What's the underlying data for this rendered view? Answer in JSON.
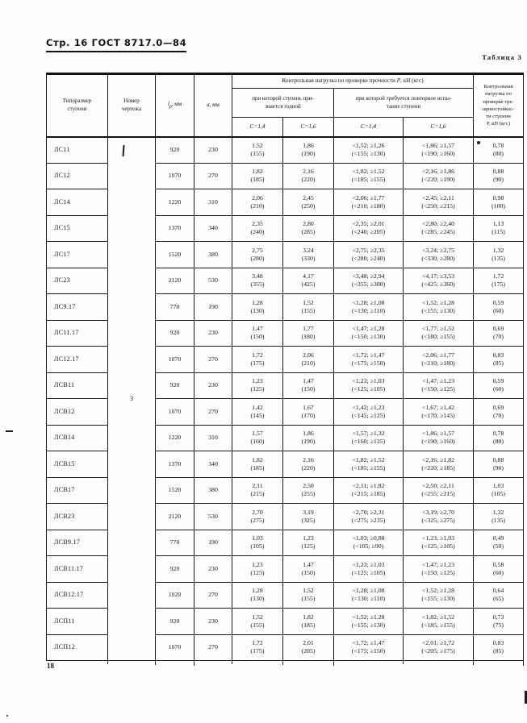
{
  "page_header": {
    "title": "Стр. 16 ГОСТ 8717.0—84"
  },
  "table_caption": "Таблица 3",
  "page_number": "18",
  "table": {
    "headers": {
      "type": "Типоразмер\nступени",
      "drawing": "Номер\nчертежа",
      "lp": {
        "base": "l",
        "sub": "р",
        "unit": ", мм"
      },
      "a": {
        "base": "а",
        "unit": ", мм"
      },
      "strength_group": {
        "prefix": "Контрольная нагрузка по проверке прочности ",
        "sym": "Р",
        "suffix": ", кН (кгс)"
      },
      "pass": "при которой ступень при-\nзнается годной",
      "retest": "при которой требуется повторное испы-\nтание ступени",
      "c_labels": [
        "С=1,4",
        "С=1,6",
        "С=1,4",
        "С=1,6"
      ],
      "crack": "Контрольная\nнагрузка по\nпроверке тре-\nщиностойкос-\nти ступени\nР, кН (кгс)"
    },
    "drawing_number": "3",
    "rows": [
      {
        "type": "ЛС11",
        "lp": "920",
        "a": "230",
        "c14_pass": "1,52\n(155)",
        "c16_pass": "1,86\n(190)",
        "c14_retest": "<1,52;  ≥1,26\n(<155;  ≥130)",
        "c16_retest": "<1,86;  ≥1,57\n(<190;  ≥160)",
        "crack": "0,78\n(80)"
      },
      {
        "type": "ЛС12",
        "lp": "1070",
        "a": "270",
        "c14_pass": "1,82\n(185)",
        "c16_pass": "2,16\n(220)",
        "c14_retest": "<1,82;  ≥1,52\n(<185;  ≥155)",
        "c16_retest": "<2,16;  ≥1,86\n(<220;  ≥190)",
        "crack": "0,88\n(90)"
      },
      {
        "type": "ЛС14",
        "lp": "1220",
        "a": "310",
        "c14_pass": "2,06\n(210)",
        "c16_pass": "2,45\n(250)",
        "c14_retest": "<2,06;  ≥1,77\n(<210;  ≥180)",
        "c16_retest": "<2,45;  ≥2,11\n(<250;  ≥215)",
        "crack": "0,98\n(100)"
      },
      {
        "type": "ЛС15",
        "lp": "1370",
        "a": "340",
        "c14_pass": "2,35\n(240)",
        "c16_pass": "2,80\n(285)",
        "c14_retest": "<2,35;  ≥2,01\n(<240;  ≥205)",
        "c16_retest": "<2,80;  ≥2,40\n(<285;  ≥245)",
        "crack": "1,13\n(115)"
      },
      {
        "type": "ЛС17",
        "lp": "1520",
        "a": "380",
        "c14_pass": "2,75\n(280)",
        "c16_pass": "3,24\n(330)",
        "c14_retest": "<2,75;  ≥2,35\n(<280;  ≥240)",
        "c16_retest": "<3,24;  ≥2,75\n(<330;  ≥280)",
        "crack": "1,32\n(135)"
      },
      {
        "type": "ЛС23",
        "lp": "2120",
        "a": "530",
        "c14_pass": "3,48\n(355)",
        "c16_pass": "4,17\n(425)",
        "c14_retest": "<3,48;  ≥2,94\n(<355;  ≥300)",
        "c16_retest": "<4,17;  ≥3,53\n(<425;  ≥360)",
        "crack": "1,72\n(175)"
      },
      {
        "type": "ЛС9.17",
        "lp": "770",
        "a": "190",
        "c14_pass": "1,28\n(130)",
        "c16_pass": "1,52\n(155)",
        "c14_retest": "<1,28;  ≥1,08\n(<130;  ≥110)",
        "c16_retest": "<1,52;  ≥1,28\n(<155;  ≥130)",
        "crack": "0,59\n(60)"
      },
      {
        "type": "ЛС11.17",
        "lp": "920",
        "a": "230",
        "c14_pass": "1,47\n(150)",
        "c16_pass": "1,77\n(180)",
        "c14_retest": "<1,47;  ≥1,28\n(<150;  ≥130)",
        "c16_retest": "<1,77;  ≥1,52\n(<180;  ≥155)",
        "crack": "0,69\n(70)"
      },
      {
        "type": "ЛС12.17",
        "lp": "1070",
        "a": "270",
        "c14_pass": "1,72\n(175)",
        "c16_pass": "2,06\n(210)",
        "c14_retest": "<1,72;  ≥1,47\n(<175;  ≥150)",
        "c16_retest": "<2,06;  ≥1,77\n(<210;  ≥180)",
        "crack": "0,83\n(85)"
      },
      {
        "type": "ЛСВ11",
        "lp": "920",
        "a": "230",
        "c14_pass": "1,23\n(125)",
        "c16_pass": "1,47\n(150)",
        "c14_retest": "<1,23;  ≥1,03\n(<125;  ≥105)",
        "c16_retest": "<1,47;  ≥1,23\n(<150;  ≥125)",
        "crack": "0,59\n(60)"
      },
      {
        "type": "ЛСВ12",
        "lp": "1070",
        "a": "270",
        "c14_pass": "1,42\n(145)",
        "c16_pass": "1,67\n(170)",
        "c14_retest": "<1,42;  ≥1,23\n(<145;  ≥125)",
        "c16_retest": "<1,67;  ≥1,42\n(<170;  ≥145)",
        "crack": "0,69\n(70)"
      },
      {
        "type": "ЛСВ14",
        "lp": "1220",
        "a": "310",
        "c14_pass": "1,57\n(160)",
        "c16_pass": "1,86\n(190)",
        "c14_retest": "<1,57;  ≥1,32\n(<160;  ≥135)",
        "c16_retest": "<1,86;  ≥1,57\n(<190;  ≥160)",
        "crack": "0,78\n(80)"
      },
      {
        "type": "ЛСВ15",
        "lp": "1370",
        "a": "340",
        "c14_pass": "1,82\n(185)",
        "c16_pass": "2,16\n(220)",
        "c14_retest": "<1,82;  ≥1,52\n(<185;  ≥155)",
        "c16_retest": "<2,16;  ≥1,82\n(<220;  ≥185)",
        "crack": "0,88\n(90)"
      },
      {
        "type": "ЛСВ17",
        "lp": "1520",
        "a": "380",
        "c14_pass": "2,11\n(215)",
        "c16_pass": "2,50\n(255)",
        "c14_retest": "<2,11;  ≥1,82\n(<215;  ≥185)",
        "c16_retest": "<2,50;  ≥2,11\n(<255;  ≥215)",
        "crack": "1,03\n(105)"
      },
      {
        "type": "ЛСВ23",
        "lp": "2120",
        "a": "530",
        "c14_pass": "2,70\n(275)",
        "c16_pass": "3,19\n(325)",
        "c14_retest": "<2,70;  ≥2,31\n(<275;  ≥235)",
        "c16_retest": "<3,19;  ≥2,70\n(<325;  ≥275)",
        "crack": "1,32\n(135)"
      },
      {
        "type": "ЛСВ9.17",
        "lp": "770",
        "a": "190",
        "c14_pass": "1,03\n(105)",
        "c16_pass": "1,23\n(125)",
        "c14_retest": "<1,03;  ≥0,88\n(<105;  ≥90)",
        "c16_retest": "<1,23;  ≥1,03\n(<125;  ≥105)",
        "crack": "0,49\n(50)"
      },
      {
        "type": "ЛСВ11.17",
        "lp": "920",
        "a": "230",
        "c14_pass": "1,23\n(125)",
        "c16_pass": "1,47\n(150)",
        "c14_retest": "<1,23;  ≥1,03\n(<125;  ≥105)",
        "c16_retest": "<1,47;  ≥1,23\n(<150;  ≥125)",
        "crack": "0,58\n(60)"
      },
      {
        "type": "ЛСВ12.17",
        "lp": "1020",
        "a": "270",
        "c14_pass": "1,28\n(130)",
        "c16_pass": "1,52\n(155)",
        "c14_retest": "<1,28;  ≥1,08\n(<130;  ≥110)",
        "c16_retest": "<1,52;  ≥1,28\n(<155;  ≥130)",
        "crack": "0,64\n(65)"
      },
      {
        "type": "ЛСП11",
        "lp": "920",
        "a": "230",
        "c14_pass": "1,52\n(155)",
        "c16_pass": "1,82\n(185)",
        "c14_retest": "<1,52;  ≥1,28\n(<155;  ≥130)",
        "c16_retest": "<1,82;  ≥1,52\n(<185;  ≥155)",
        "crack": "0,73\n(75)"
      },
      {
        "type": "ЛСП12",
        "lp": "1070",
        "a": "270",
        "c14_pass": "1,72\n(175)",
        "c16_pass": "2,01\n(205)",
        "c14_retest": "<1,72;  ≥1,47\n(<175;  ≥150)",
        "c16_retest": "<2,01;  ≥1,72\n(<205;  ≥175)",
        "crack": "0,83\n(85)"
      }
    ]
  }
}
